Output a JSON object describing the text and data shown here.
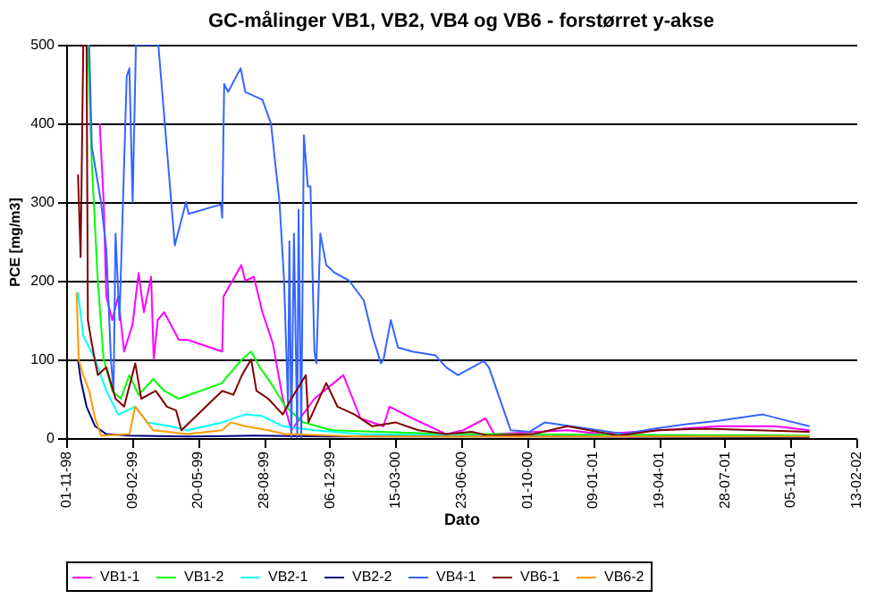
{
  "chart_data": {
    "type": "line",
    "title": "GC-målinger VB1, VB2, VB4 og VB6 - forstørret y-akse",
    "xlabel": "Dato",
    "ylabel": "PCE [mg/m3]",
    "xlim": [
      "1998-11-01",
      "2002-02-13"
    ],
    "xticks": [
      {
        "value": "1998-11-01",
        "label": "01-11-98"
      },
      {
        "value": "1999-02-09",
        "label": "09-02-99"
      },
      {
        "value": "1999-05-20",
        "label": "20-05-99"
      },
      {
        "value": "1999-08-28",
        "label": "28-08-99"
      },
      {
        "value": "1999-12-06",
        "label": "06-12-99"
      },
      {
        "value": "2000-03-15",
        "label": "15-03-00"
      },
      {
        "value": "2000-06-23",
        "label": "23-06-00"
      },
      {
        "value": "2000-10-01",
        "label": "01-10-00"
      },
      {
        "value": "2001-01-09",
        "label": "09-01-01"
      },
      {
        "value": "2001-04-19",
        "label": "19-04-01"
      },
      {
        "value": "2001-07-28",
        "label": "28-07-01"
      },
      {
        "value": "2001-11-05",
        "label": "05-11-01"
      },
      {
        "value": "2002-02-13",
        "label": "13-02-02"
      }
    ],
    "ylim": [
      0,
      500
    ],
    "yticks": [
      0,
      100,
      200,
      300,
      400,
      500
    ],
    "grid": "y",
    "legend": "bottom",
    "marker": "none",
    "line_style": "solid",
    "series": [
      {
        "name": "VB1-1",
        "color": "#ff00ff",
        "x": [
          "1998-12-22",
          "1998-12-28",
          "1999-01-01",
          "1999-01-10",
          "1999-01-19",
          "1999-01-28",
          "1999-02-10",
          "1999-02-19",
          "1999-02-27",
          "1999-03-10",
          "1999-03-14",
          "1999-03-20",
          "1999-03-30",
          "1999-04-21",
          "1999-05-04",
          "1999-06-26",
          "1999-06-28",
          "1999-07-25",
          "1999-07-31",
          "1999-08-13",
          "1999-08-26",
          "1999-09-11",
          "1999-09-26",
          "1999-10-09",
          "1999-11-13",
          "1999-12-27",
          "2000-01-22",
          "2000-02-26",
          "2000-03-06",
          "2000-04-10",
          "2000-05-31",
          "2000-06-26",
          "2000-07-30",
          "2000-08-12",
          "2000-12-01",
          "2001-01-23",
          "2001-04-19",
          "2001-07-18",
          "2001-10-12",
          "2001-12-04"
        ],
        "values": [
          400,
          300,
          180,
          150,
          180,
          110,
          145,
          210,
          160,
          205,
          100,
          150,
          160,
          125,
          125,
          110,
          180,
          220,
          200,
          205,
          160,
          120,
          50,
          10,
          50,
          80,
          25,
          15,
          40,
          25,
          5,
          10,
          25,
          5,
          10,
          5,
          10,
          15,
          15,
          10
        ]
      },
      {
        "name": "VB1-2",
        "color": "#00ff00",
        "x": [
          "1998-12-04",
          "1998-12-10",
          "1998-12-19",
          "1998-12-28",
          "1999-01-10",
          "1999-01-23",
          "1999-02-05",
          "1999-02-19",
          "1999-03-13",
          "1999-03-30",
          "1999-04-21",
          "1999-06-26",
          "1999-06-30",
          "1999-07-26",
          "1999-08-09",
          "1999-08-22",
          "1999-09-08",
          "1999-09-30",
          "1999-10-27",
          "1999-12-09",
          "2000-05-31",
          "2000-08-17",
          "2001-12-04"
        ],
        "values": [
          500,
          350,
          200,
          100,
          60,
          50,
          80,
          55,
          75,
          60,
          50,
          70,
          75,
          100,
          110,
          90,
          70,
          40,
          20,
          10,
          5,
          5,
          3
        ]
      },
      {
        "name": "VB2-1",
        "color": "#00ffff",
        "x": [
          "1998-11-19",
          "1998-11-27",
          "1998-12-15",
          "1999-01-01",
          "1999-01-19",
          "1999-02-14",
          "1999-03-04",
          "1999-04-08",
          "1999-05-04",
          "1999-06-26",
          "1999-07-31",
          "1999-08-26",
          "1999-09-26",
          "1999-11-13",
          "2000-01-22",
          "2000-05-31",
          "2001-12-04"
        ],
        "values": [
          185,
          130,
          100,
          60,
          30,
          40,
          20,
          15,
          10,
          20,
          30,
          28,
          15,
          10,
          5,
          3,
          2
        ]
      },
      {
        "name": "VB2-2",
        "color": "#000080",
        "x": [
          "1998-11-19",
          "1998-11-23",
          "1998-12-02",
          "1998-12-15",
          "1999-01-01",
          "1999-02-05",
          "1999-05-04",
          "1999-08-13",
          "1999-12-09",
          "2000-10-05",
          "2001-12-04"
        ],
        "values": [
          100,
          75,
          40,
          15,
          5,
          3,
          2,
          3,
          2,
          2,
          1
        ]
      },
      {
        "name": "VB4-1",
        "color": "#3366ff",
        "x": [
          "1998-12-06",
          "1998-12-10",
          "1998-12-24",
          "1999-01-01",
          "1999-01-08",
          "1999-01-12",
          "1999-01-15",
          "1999-01-21",
          "1999-02-01",
          "1999-02-05",
          "1999-02-10",
          "1999-02-15",
          "1999-03-21",
          "1999-04-15",
          "1999-05-02",
          "1999-05-06",
          "1999-06-24",
          "1999-06-26",
          "1999-06-29",
          "1999-07-05",
          "1999-07-24",
          "1999-07-31",
          "1999-08-26",
          "1999-09-08",
          "1999-09-21",
          "1999-09-28",
          "1999-10-04",
          "1999-10-06",
          "1999-10-09",
          "1999-10-13",
          "1999-10-18",
          "1999-10-20",
          "1999-10-24",
          "1999-10-28",
          "1999-11-03",
          "1999-11-07",
          "1999-11-13",
          "1999-11-16",
          "1999-11-22",
          "1999-12-01",
          "1999-12-14",
          "2000-01-05",
          "2000-01-27",
          "2000-02-09",
          "2000-02-22",
          "2000-02-26",
          "2000-03-08",
          "2000-03-19",
          "2000-04-10",
          "2000-05-15",
          "2000-05-31",
          "2000-06-18",
          "2000-07-27",
          "2000-08-04",
          "2000-09-06",
          "2000-10-05",
          "2000-10-28",
          "2000-12-07",
          "2001-02-26",
          "2001-04-12",
          "2001-06-03",
          "2001-07-18",
          "2001-09-24",
          "2001-10-31",
          "2001-12-04"
        ],
        "values": [
          500,
          370,
          300,
          240,
          100,
          60,
          260,
          150,
          460,
          470,
          300,
          500,
          500,
          245,
          300,
          285,
          297,
          280,
          450,
          440,
          470,
          440,
          430,
          400,
          300,
          200,
          40,
          250,
          0,
          260,
          0,
          290,
          0,
          385,
          320,
          320,
          110,
          95,
          260,
          220,
          210,
          200,
          175,
          130,
          95,
          100,
          150,
          115,
          110,
          105,
          90,
          80,
          98,
          90,
          10,
          8,
          20,
          15,
          5,
          12,
          18,
          22,
          30,
          22,
          15
        ]
      },
      {
        "name": "VB6-1",
        "color": "#800000",
        "x": [
          "1998-11-19",
          "1998-11-23",
          "1998-11-27",
          "1998-12-02",
          "1998-12-04",
          "1998-12-10",
          "1998-12-19",
          "1999-01-01",
          "1999-01-15",
          "1999-01-28",
          "1999-02-14",
          "1999-02-23",
          "1999-03-17",
          "1999-04-03",
          "1999-04-17",
          "1999-04-25",
          "1999-06-26",
          "1999-07-13",
          "1999-07-26",
          "1999-08-09",
          "1999-08-17",
          "1999-09-04",
          "1999-09-26",
          "1999-10-09",
          "1999-10-31",
          "1999-11-04",
          "1999-12-01",
          "1999-12-18",
          "2000-01-13",
          "2000-02-09",
          "2000-03-15",
          "2000-04-19",
          "2000-05-31",
          "2000-07-09",
          "2000-08-04",
          "2000-10-10",
          "2000-12-01",
          "2001-02-18",
          "2001-04-17",
          "2001-06-29",
          "2001-09-16",
          "2001-12-04"
        ],
        "values": [
          335,
          230,
          500,
          500,
          150,
          120,
          80,
          90,
          50,
          40,
          95,
          50,
          60,
          40,
          35,
          10,
          60,
          55,
          80,
          100,
          60,
          50,
          30,
          50,
          80,
          20,
          70,
          40,
          30,
          15,
          20,
          10,
          5,
          8,
          3,
          5,
          15,
          3,
          10,
          12,
          10,
          8
        ]
      },
      {
        "name": "VB6-2",
        "color": "#ff9900",
        "x": [
          "1998-11-17",
          "1998-11-20",
          "1998-11-27",
          "1998-12-06",
          "1998-12-15",
          "1998-12-24",
          "1999-02-05",
          "1999-02-14",
          "1999-03-13",
          "1999-05-04",
          "1999-06-26",
          "1999-07-09",
          "1999-07-31",
          "1999-09-04",
          "1999-09-30",
          "2000-01-22",
          "2001-12-04"
        ],
        "values": [
          185,
          100,
          80,
          60,
          25,
          3,
          5,
          40,
          10,
          5,
          10,
          20,
          15,
          10,
          5,
          2,
          2
        ]
      }
    ]
  }
}
